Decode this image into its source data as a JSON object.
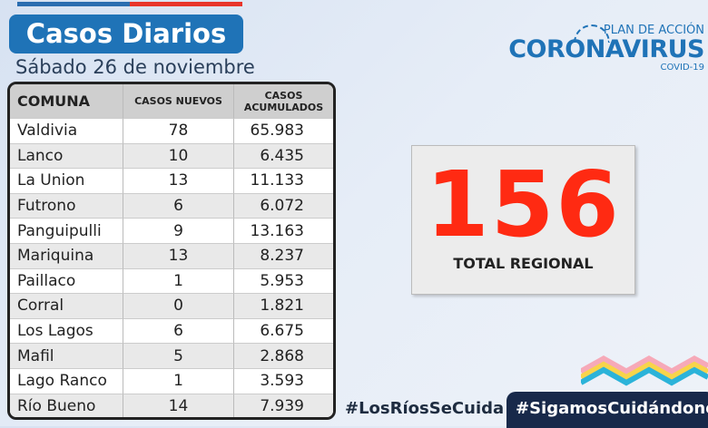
{
  "title": "Casos Diarios",
  "date": "Sábado 26 de noviembre",
  "table": {
    "headers": [
      "COMUNA",
      "CASOS NUEVOS",
      "CASOS ACUMULADOS"
    ],
    "rows": [
      [
        "Valdivia",
        "78",
        "65.983"
      ],
      [
        "Lanco",
        "10",
        "6.435"
      ],
      [
        "La Union",
        "13",
        "11.133"
      ],
      [
        "Futrono",
        "6",
        "6.072"
      ],
      [
        "Panguipulli",
        "9",
        "13.163"
      ],
      [
        "Mariquina",
        "13",
        "8.237"
      ],
      [
        "Paillaco",
        "1",
        "5.953"
      ],
      [
        "Corral",
        "0",
        "1.821"
      ],
      [
        "Los Lagos",
        "6",
        "6.675"
      ],
      [
        "Mafil",
        "5",
        "2.868"
      ],
      [
        "Lago Ranco",
        "1",
        "3.593"
      ],
      [
        "Río Bueno",
        "14",
        "7.939"
      ]
    ]
  },
  "logo": {
    "plan": "PLAN DE ACCIÓN",
    "name": "CORONAVIRUS",
    "sub": "COVID-19"
  },
  "total": {
    "value": "156",
    "label": "TOTAL REGIONAL"
  },
  "hashtags": [
    "#LosRíosSeCuida",
    "#SigamosCuidándonos"
  ]
}
